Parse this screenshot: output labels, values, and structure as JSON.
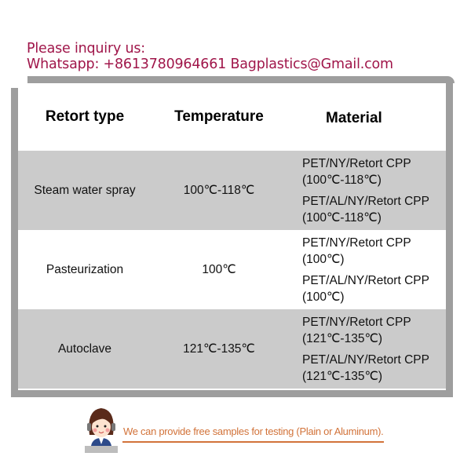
{
  "contact": {
    "line1": "Please inquiry us:",
    "line2": "Whatsapp: +8613780964661 Bagplastics@Gmail.com",
    "color": "#a0164a"
  },
  "table": {
    "headers": [
      "Retort type",
      "Temperature",
      "Material"
    ],
    "rows": [
      {
        "type": "Steam water spray",
        "temperature": "100℃-118℃",
        "materials": [
          [
            "PET/NY/Retort CPP",
            "(100℃-118℃)"
          ],
          [
            "PET/AL/NY/Retort CPP",
            "(100℃-118℃)"
          ]
        ]
      },
      {
        "type": "Pasteurization",
        "temperature": "100℃",
        "materials": [
          [
            "PET/NY/Retort CPP",
            "(100℃)"
          ],
          [
            "PET/AL/NY/Retort CPP",
            "(100℃)"
          ]
        ]
      },
      {
        "type": "Autoclave",
        "temperature": "121℃-135℃",
        "materials": [
          [
            "PET/NY/Retort CPP",
            "(121℃-135℃)"
          ],
          [
            "PET/AL/NY/Retort CPP",
            "(121℃-135℃)"
          ]
        ]
      }
    ]
  },
  "footer": {
    "note": "We can provide free samples for testing (Plain or Aluminum).",
    "icon": "customer-service-avatar-icon",
    "color": "#d2733a"
  }
}
